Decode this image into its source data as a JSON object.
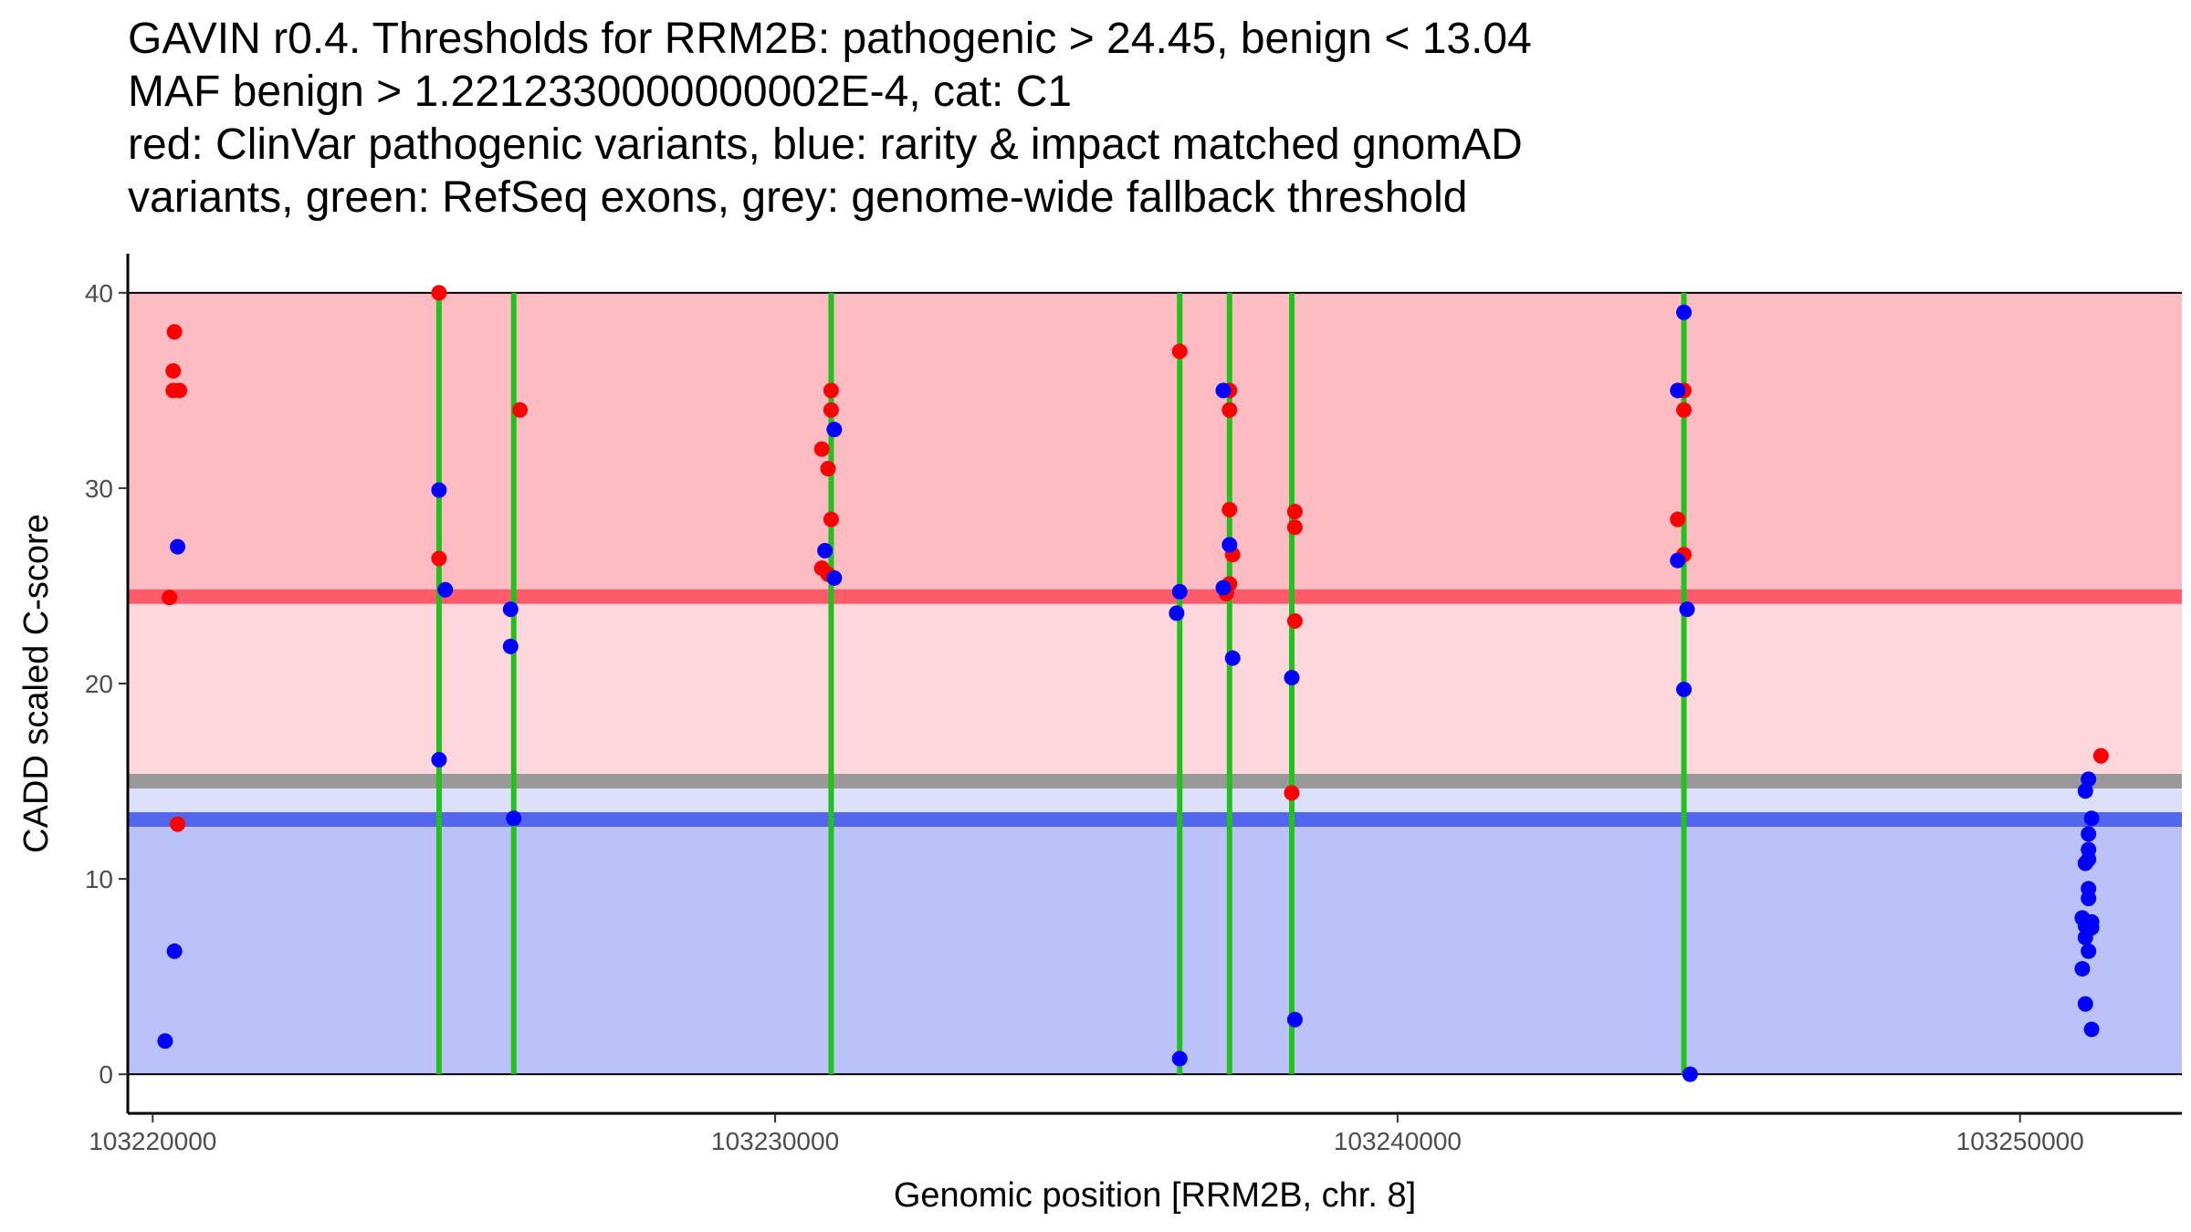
{
  "chart_data": {
    "type": "scatter",
    "title_lines": [
      "GAVIN r0.4. Thresholds for RRM2B: pathogenic > 24.45, benign < 13.04",
      "MAF benign > 1.2212330000000002E-4, cat: C1",
      "red: ClinVar pathogenic variants, blue: rarity & impact matched gnomAD",
      "variants, green: RefSeq exons, grey: genome-wide fallback threshold"
    ],
    "xlabel": "Genomic position [RRM2B, chr. 8]",
    "ylabel": "CADD scaled C-score",
    "xlim": [
      103219600,
      103252600
    ],
    "ylim": [
      -2,
      42
    ],
    "x_ticks": [
      103220000,
      103230000,
      103240000,
      103250000
    ],
    "x_tick_labels": [
      "103220000",
      "103230000",
      "103240000",
      "103250000"
    ],
    "y_ticks": [
      0,
      10,
      20,
      30,
      40
    ],
    "y_tick_labels": [
      "0",
      "10",
      "20",
      "30",
      "40"
    ],
    "colors": {
      "pathogenic_region": "#fcbcc1",
      "intermediate_region": "#fdd7dc",
      "benign_region": "#bbc2f9",
      "fallback_gap": "#dde0fa",
      "pathogenic_line": "#ff5b6b",
      "benign_line": "#5566ee",
      "fallback_line": "#999999",
      "exon": "#22c21c",
      "pathogenic_point": "#ff0000",
      "benign_point": "#0000ff"
    },
    "thresholds": {
      "pathogenic": 24.45,
      "benign": 13.04,
      "fallback": 15.0,
      "fallback_lower": 14.6,
      "top": 40
    },
    "exons": [
      103224600,
      103225800,
      103230900,
      103236500,
      103237300,
      103238300,
      103244600
    ],
    "series": [
      {
        "name": "ClinVar pathogenic variants",
        "color": "#ff0000",
        "points": [
          [
            103220350,
            38.0
          ],
          [
            103220330,
            36.0
          ],
          [
            103220330,
            35.0
          ],
          [
            103220430,
            35.0
          ],
          [
            103220270,
            24.4
          ],
          [
            103220400,
            12.8
          ],
          [
            103224600,
            40.0
          ],
          [
            103224600,
            26.4
          ],
          [
            103225900,
            34.0
          ],
          [
            103230900,
            35.0
          ],
          [
            103230900,
            34.0
          ],
          [
            103230750,
            32.0
          ],
          [
            103230850,
            31.0
          ],
          [
            103230900,
            28.4
          ],
          [
            103230750,
            25.9
          ],
          [
            103230850,
            25.6
          ],
          [
            103236500,
            37.0
          ],
          [
            103237300,
            35.0
          ],
          [
            103237300,
            34.0
          ],
          [
            103237300,
            28.9
          ],
          [
            103237350,
            26.6
          ],
          [
            103237300,
            25.1
          ],
          [
            103237250,
            24.6
          ],
          [
            103238350,
            28.8
          ],
          [
            103238350,
            28.0
          ],
          [
            103238350,
            23.2
          ],
          [
            103238300,
            14.4
          ],
          [
            103244600,
            35.0
          ],
          [
            103244600,
            34.0
          ],
          [
            103244500,
            28.4
          ],
          [
            103244600,
            26.6
          ],
          [
            103251300,
            16.3
          ]
        ]
      },
      {
        "name": "rarity & impact matched gnomAD variants",
        "color": "#0000ff",
        "points": [
          [
            103220400,
            27.0
          ],
          [
            103220350,
            6.3
          ],
          [
            103220200,
            1.7
          ],
          [
            103224600,
            29.9
          ],
          [
            103224700,
            24.8
          ],
          [
            103224600,
            16.1
          ],
          [
            103225750,
            23.8
          ],
          [
            103225750,
            21.9
          ],
          [
            103225800,
            13.1
          ],
          [
            103230950,
            33.0
          ],
          [
            103230800,
            26.8
          ],
          [
            103230950,
            25.4
          ],
          [
            103236500,
            24.7
          ],
          [
            103236450,
            23.6
          ],
          [
            103236500,
            0.8
          ],
          [
            103237200,
            35.0
          ],
          [
            103237300,
            27.1
          ],
          [
            103237200,
            24.9
          ],
          [
            103237350,
            21.3
          ],
          [
            103238300,
            20.3
          ],
          [
            103238350,
            2.8
          ],
          [
            103244600,
            39.0
          ],
          [
            103244500,
            35.0
          ],
          [
            103244500,
            26.3
          ],
          [
            103244650,
            23.8
          ],
          [
            103244600,
            19.7
          ],
          [
            103244700,
            0.0
          ],
          [
            103251100,
            15.1
          ],
          [
            103251050,
            14.5
          ],
          [
            103251150,
            13.1
          ],
          [
            103251100,
            12.3
          ],
          [
            103251100,
            11.5
          ],
          [
            103251050,
            10.8
          ],
          [
            103251100,
            11.0
          ],
          [
            103251100,
            9.5
          ],
          [
            103251100,
            9.0
          ],
          [
            103251000,
            8.0
          ],
          [
            103251150,
            7.8
          ],
          [
            103251050,
            7.6
          ],
          [
            103251150,
            7.5
          ],
          [
            103251050,
            7.0
          ],
          [
            103251100,
            6.3
          ],
          [
            103251000,
            5.4
          ],
          [
            103251050,
            3.6
          ],
          [
            103251150,
            2.3
          ]
        ]
      }
    ]
  }
}
